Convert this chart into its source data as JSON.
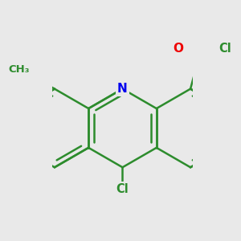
{
  "background_color": "#e9e9e9",
  "bond_color": "#2d8c2d",
  "bond_width": 1.8,
  "atom_colors": {
    "N": "#0000ee",
    "O": "#ee0000",
    "Cl": "#2d8c2d",
    "C": "#2d8c2d"
  },
  "font_size": 10.5,
  "fig_size": [
    3.0,
    3.0
  ],
  "dpi": 100,
  "xlim": [
    -1.8,
    1.8
  ],
  "ylim": [
    -1.9,
    1.7
  ]
}
